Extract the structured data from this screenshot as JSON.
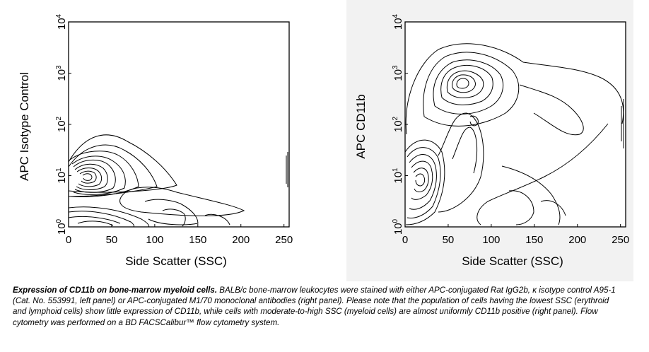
{
  "chart_data": [
    {
      "type": "contour",
      "panel": "left",
      "ylabel": "APC Isotype Control",
      "xlabel": "Side Scatter (SSC)",
      "xlim": [
        0,
        256
      ],
      "ylim_log": [
        0,
        4
      ],
      "x_ticks": [
        "0",
        "50",
        "100",
        "150",
        "200",
        "250"
      ],
      "x_tick_values": [
        0,
        50,
        100,
        150,
        200,
        250
      ],
      "y_ticks": [
        {
          "base": "10",
          "exp": "0",
          "value": 0
        },
        {
          "base": "10",
          "exp": "1",
          "value": 1
        },
        {
          "base": "10",
          "exp": "2",
          "value": 2
        },
        {
          "base": "10",
          "exp": "3",
          "value": 3
        },
        {
          "base": "10",
          "exp": "4",
          "value": 4
        }
      ],
      "populations": [
        {
          "center_ssc": 22,
          "center_log": 1.05,
          "levels": 9
        }
      ],
      "grid": false,
      "legend": "none"
    },
    {
      "type": "contour",
      "panel": "right",
      "ylabel": "APC CD11b",
      "xlabel": "Side Scatter (SSC)",
      "xlim": [
        0,
        256
      ],
      "ylim_log": [
        0,
        4
      ],
      "x_ticks": [
        "0",
        "50",
        "100",
        "150",
        "200",
        "250"
      ],
      "x_tick_values": [
        0,
        50,
        100,
        150,
        200,
        250
      ],
      "y_ticks": [
        {
          "base": "10",
          "exp": "0",
          "value": 0
        },
        {
          "base": "10",
          "exp": "1",
          "value": 1
        },
        {
          "base": "10",
          "exp": "2",
          "value": 2
        },
        {
          "base": "10",
          "exp": "3",
          "value": 3
        },
        {
          "base": "10",
          "exp": "4",
          "value": 4
        }
      ],
      "populations": [
        {
          "center_ssc": 20,
          "center_log": 1.0,
          "levels": 6
        },
        {
          "center_ssc": 58,
          "center_log": 2.85,
          "levels": 6
        }
      ],
      "grid": false,
      "legend": "none"
    }
  ],
  "caption": {
    "title": "Expression of CD11b on bone-marrow myeloid cells.",
    "body": " BALB/c bone-marrow leukocytes were stained with either APC-conjugated Rat IgG2b, κ isotype control A95-1 (Cat. No. 553991, left panel) or APC-conjugated M1/70 monoclonal antibodies (right panel). Please note that the population of cells having the lowest SSC (erythroid and lymphoid cells) show little expression of CD11b, while cells with moderate-to-high SSC (myeloid cells) are almost uniformly CD11b positive (right panel). Flow cytometry was performed on a BD FACSCalibur™ flow cytometry system."
  }
}
